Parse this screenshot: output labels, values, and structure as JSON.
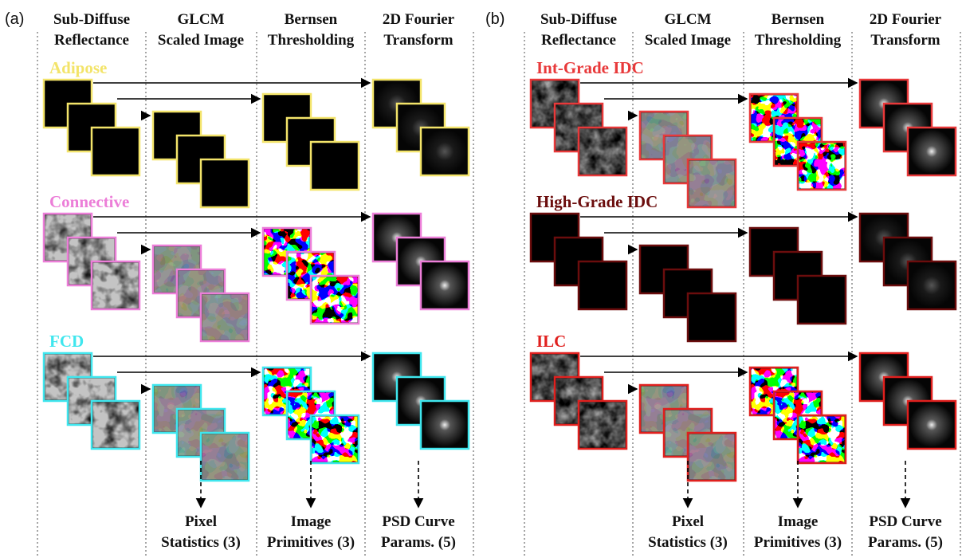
{
  "panels": [
    {
      "label": "(a)",
      "columns": [
        [
          "Sub-Diffuse",
          "Reflectance"
        ],
        [
          "GLCM",
          "Scaled Image"
        ],
        [
          "Bernsen",
          "Thresholding"
        ],
        [
          "2D Fourier",
          "Transform"
        ]
      ],
      "rows": [
        {
          "label": "Adipose",
          "color": "#f3e46a"
        },
        {
          "label": "Connective",
          "color": "#ec7ed8"
        },
        {
          "label": "FCD",
          "color": "#3fe6ee"
        }
      ],
      "outputs": [
        [
          "Pixel",
          "Statistics (3)"
        ],
        [
          "Image",
          "Primitives (3)"
        ],
        [
          "PSD Curve",
          "Params. (5)"
        ]
      ]
    },
    {
      "label": "(b)",
      "columns": [
        [
          "Sub-Diffuse",
          "Reflectance"
        ],
        [
          "GLCM",
          "Scaled Image"
        ],
        [
          "Bernsen",
          "Thresholding"
        ],
        [
          "2D Fourier",
          "Transform"
        ]
      ],
      "rows": [
        {
          "label": "Int-Grade IDC",
          "color": "#e8393a"
        },
        {
          "label": "High-Grade IDC",
          "color": "#6b0d0d"
        },
        {
          "label": "ILC",
          "color": "#e0201e"
        }
      ],
      "outputs": [
        [
          "Pixel",
          "Statistics (3)"
        ],
        [
          "Image",
          "Primitives (3)"
        ],
        [
          "PSD Curve",
          "Params. (5)"
        ]
      ]
    }
  ]
}
